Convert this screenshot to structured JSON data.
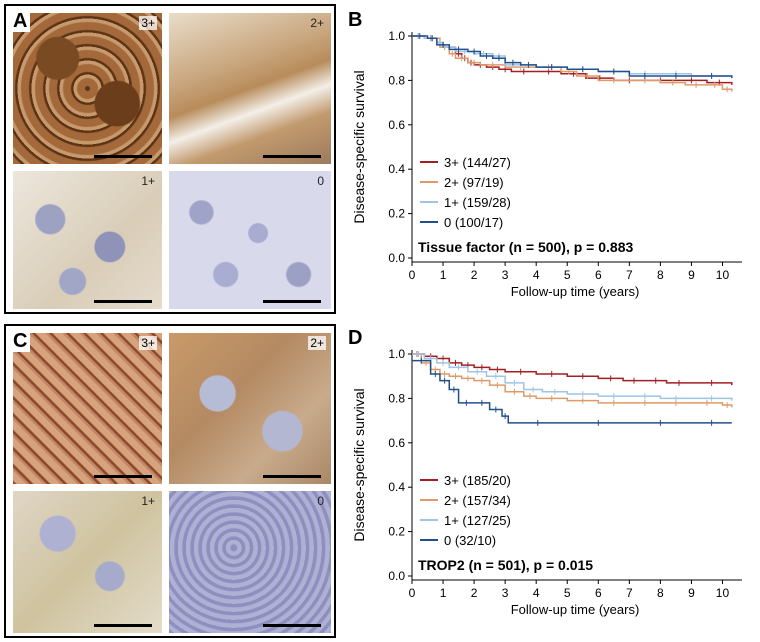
{
  "panels": {
    "A": {
      "letter": "A",
      "tiles": [
        "3+",
        "2+",
        "1+",
        "0"
      ]
    },
    "C": {
      "letter": "C",
      "tiles": [
        "3+",
        "2+",
        "1+",
        "0"
      ]
    }
  },
  "colors": {
    "c3": "#a41e22",
    "c2": "#de9a6a",
    "c1": "#9ec4e6",
    "c0": "#214f8c"
  },
  "chart_data": [
    {
      "letter": "B",
      "type": "line",
      "xlabel": "Follow-up time (years)",
      "ylabel": "Disease-specific survival",
      "xlim": [
        0,
        10.5
      ],
      "ylim": [
        0,
        1
      ],
      "xticks": [
        0,
        1,
        2,
        3,
        4,
        5,
        6,
        7,
        8,
        9,
        10
      ],
      "yticks": [
        0.0,
        0.2,
        0.4,
        0.6,
        0.8,
        1.0
      ],
      "ytick_labels": [
        "0.0",
        "0.2",
        "0.4",
        "0.6",
        "0.8",
        "1.0"
      ],
      "annotation": "Tissue factor (n = 500), p = 0.883",
      "series": [
        {
          "name": "3+ (144/27)",
          "color": "#a41e22",
          "x": [
            0,
            0.4,
            0.8,
            1.0,
            1.4,
            1.6,
            1.8,
            2.0,
            2.4,
            2.8,
            3.2,
            4.0,
            4.8,
            5.6,
            6.5,
            7.5,
            8.5,
            9.5,
            10.3
          ],
          "y": [
            1.0,
            0.99,
            0.97,
            0.95,
            0.92,
            0.9,
            0.88,
            0.87,
            0.86,
            0.85,
            0.84,
            0.84,
            0.83,
            0.81,
            0.8,
            0.8,
            0.8,
            0.79,
            0.78
          ]
        },
        {
          "name": "2+ (97/19)",
          "color": "#de9a6a",
          "x": [
            0,
            0.4,
            0.9,
            1.2,
            1.4,
            1.8,
            2.2,
            3.0,
            4.0,
            4.8,
            5.3,
            6.0,
            7.0,
            8.0,
            8.8,
            9.5,
            10.0,
            10.3
          ],
          "y": [
            1.0,
            0.99,
            0.95,
            0.92,
            0.9,
            0.88,
            0.87,
            0.86,
            0.86,
            0.84,
            0.82,
            0.8,
            0.8,
            0.79,
            0.78,
            0.78,
            0.76,
            0.75
          ]
        },
        {
          "name": "1+ (159/28)",
          "color": "#9ec4e6",
          "x": [
            0,
            0.4,
            0.8,
            1.0,
            1.4,
            2.0,
            2.6,
            3.0,
            4.0,
            5.0,
            6.0,
            7.0,
            8.0,
            9.0,
            10.3
          ],
          "y": [
            1.0,
            0.99,
            0.97,
            0.95,
            0.93,
            0.92,
            0.91,
            0.87,
            0.86,
            0.85,
            0.84,
            0.83,
            0.83,
            0.82,
            0.82
          ]
        },
        {
          "name": "0 (100/17)",
          "color": "#214f8c",
          "x": [
            0,
            0.5,
            0.8,
            1.2,
            1.8,
            2.2,
            2.6,
            3.0,
            3.5,
            4.0,
            5.0,
            6.0,
            7.0,
            8.0,
            9.0,
            10.3
          ],
          "y": [
            1.0,
            0.99,
            0.96,
            0.94,
            0.93,
            0.91,
            0.9,
            0.88,
            0.87,
            0.86,
            0.85,
            0.84,
            0.82,
            0.82,
            0.82,
            0.81
          ]
        }
      ],
      "legend_position": "bottom-left"
    },
    {
      "letter": "D",
      "type": "line",
      "xlabel": "Follow-up time (years)",
      "ylabel": "Disease-specific survival",
      "xlim": [
        0,
        10.5
      ],
      "ylim": [
        0,
        1
      ],
      "xticks": [
        0,
        1,
        2,
        3,
        4,
        5,
        6,
        7,
        8,
        9,
        10
      ],
      "yticks": [
        0.0,
        0.2,
        0.4,
        0.6,
        0.8,
        1.0
      ],
      "ytick_labels": [
        "0.0",
        "0.2",
        "0.4",
        "0.6",
        "0.8",
        "1.0"
      ],
      "annotation": "TROP2 (n = 501), p = 0.015",
      "series": [
        {
          "name": "3+ (185/20)",
          "color": "#a41e22",
          "x": [
            0,
            0.4,
            0.8,
            1.2,
            1.6,
            2.0,
            2.5,
            3.0,
            4.0,
            5.0,
            6.0,
            6.8,
            7.5,
            8.2,
            9.0,
            10.3
          ],
          "y": [
            1.0,
            0.99,
            0.98,
            0.96,
            0.95,
            0.94,
            0.93,
            0.92,
            0.91,
            0.9,
            0.89,
            0.88,
            0.88,
            0.87,
            0.87,
            0.86
          ]
        },
        {
          "name": "2+ (157/34)",
          "color": "#de9a6a",
          "x": [
            0,
            0.3,
            0.6,
            0.9,
            1.2,
            1.6,
            2.0,
            2.5,
            3.0,
            3.6,
            4.0,
            5.0,
            6.0,
            7.0,
            8.0,
            9.0,
            10.0,
            10.3
          ],
          "y": [
            1.0,
            0.96,
            0.93,
            0.91,
            0.9,
            0.89,
            0.88,
            0.86,
            0.83,
            0.81,
            0.8,
            0.79,
            0.78,
            0.78,
            0.78,
            0.78,
            0.77,
            0.76
          ]
        },
        {
          "name": "1+ (127/25)",
          "color": "#9ec4e6",
          "x": [
            0,
            0.4,
            0.8,
            1.2,
            1.8,
            2.4,
            3.0,
            3.6,
            4.2,
            5.0,
            6.0,
            7.0,
            8.0,
            9.0,
            10.3
          ],
          "y": [
            1.0,
            0.98,
            0.96,
            0.94,
            0.92,
            0.9,
            0.87,
            0.84,
            0.83,
            0.82,
            0.81,
            0.81,
            0.8,
            0.8,
            0.79
          ]
        },
        {
          "name": "0     (32/10)",
          "color": "#214f8c",
          "x": [
            0,
            0.6,
            0.9,
            1.2,
            1.5,
            2.0,
            2.5,
            2.9,
            3.1,
            5.0,
            7.0,
            9.0,
            10.3
          ],
          "y": [
            0.97,
            0.91,
            0.88,
            0.84,
            0.78,
            0.78,
            0.75,
            0.72,
            0.69,
            0.69,
            0.69,
            0.69,
            0.69
          ]
        }
      ],
      "legend_position": "bottom-left"
    }
  ]
}
